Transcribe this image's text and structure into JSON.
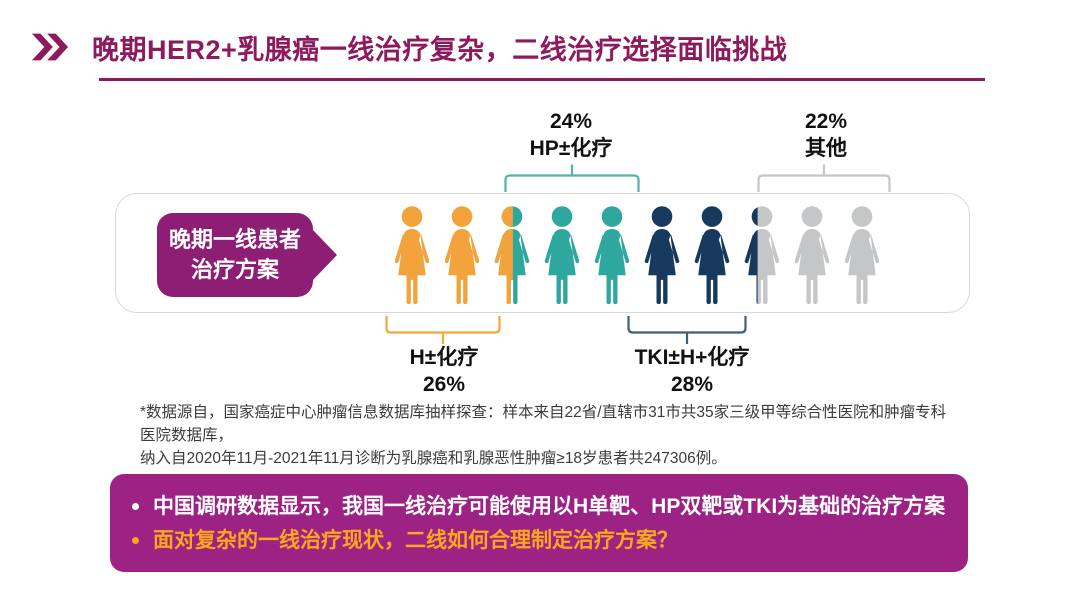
{
  "header": {
    "title": "晚期HER2+乳腺癌一线治疗复杂，二线治疗选择面临挑战"
  },
  "pictograph": {
    "tag": {
      "line1": "晚期一线患者",
      "line2": "治疗方案"
    },
    "groups": [
      {
        "name": "H±化疗",
        "percent": "26%",
        "color_key": "orange",
        "label_position": "bottom"
      },
      {
        "name": "HP±化疗",
        "percent": "24%",
        "color_key": "teal",
        "label_position": "top"
      },
      {
        "name": "TKI±H+化疗",
        "percent": "28%",
        "color_key": "navy",
        "label_position": "bottom"
      },
      {
        "name": "其他",
        "percent": "22%",
        "color_key": "gray",
        "label_position": "top"
      }
    ],
    "people": [
      {
        "fill": "orange"
      },
      {
        "fill": "orange"
      },
      {
        "fill": "orange",
        "fill2": "teal",
        "split": 0.52
      },
      {
        "fill": "teal"
      },
      {
        "fill": "teal"
      },
      {
        "fill": "navy"
      },
      {
        "fill": "navy"
      },
      {
        "fill": "navy",
        "fill2": "gray",
        "split": 0.4
      },
      {
        "fill": "gray"
      },
      {
        "fill": "gray"
      }
    ]
  },
  "colors": {
    "orange": "#F2A33C",
    "teal": "#2EA79E",
    "navy": "#16395D",
    "gray": "#C5C6C8",
    "title": "#8E1A5E",
    "tag_bg": "#8E1E74",
    "banner_bg": "#9C2384",
    "banner_highlight": "#F8A81C",
    "bracket_teal": "#54B2AA",
    "bracket_gray": "#C3C5C7",
    "bracket_orange": "#F2A73B",
    "bracket_navy": "#3E5E7E"
  },
  "footnote": {
    "line1": "*数据源自，国家癌症中心肿瘤信息数据库抽样探查：样本来自22省/直辖市31市共35家三级甲等综合性医院和肿瘤专科医院数据库，",
    "line2": "纳入自2020年11月-2021年11月诊断为乳腺癌和乳腺恶性肿瘤≥18岁患者共247306例。"
  },
  "banner": {
    "bullets": [
      {
        "text": "中国调研数据显示，我国一线治疗可能使用以H单靶、HP双靶或TKI为基础的治疗方案",
        "color": "#FFFFFF"
      },
      {
        "text": "面对复杂的一线治疗现状，二线如何合理制定治疗方案？",
        "color": "#F8A81C"
      }
    ]
  },
  "chart_data": {
    "type": "pie",
    "style": "pictograph of 10 person icons (each icon = 10%)",
    "title": "晚期一线患者治疗方案",
    "categories": [
      "H±化疗",
      "HP±化疗",
      "TKI±H+化疗",
      "其他"
    ],
    "values": [
      26,
      24,
      28,
      22
    ],
    "unit": "%",
    "colors": [
      "#F2A33C",
      "#2EA79E",
      "#16395D",
      "#C5C6C8"
    ],
    "icons_total": 10,
    "legend_position": "labels above and below pictograph with brackets"
  }
}
